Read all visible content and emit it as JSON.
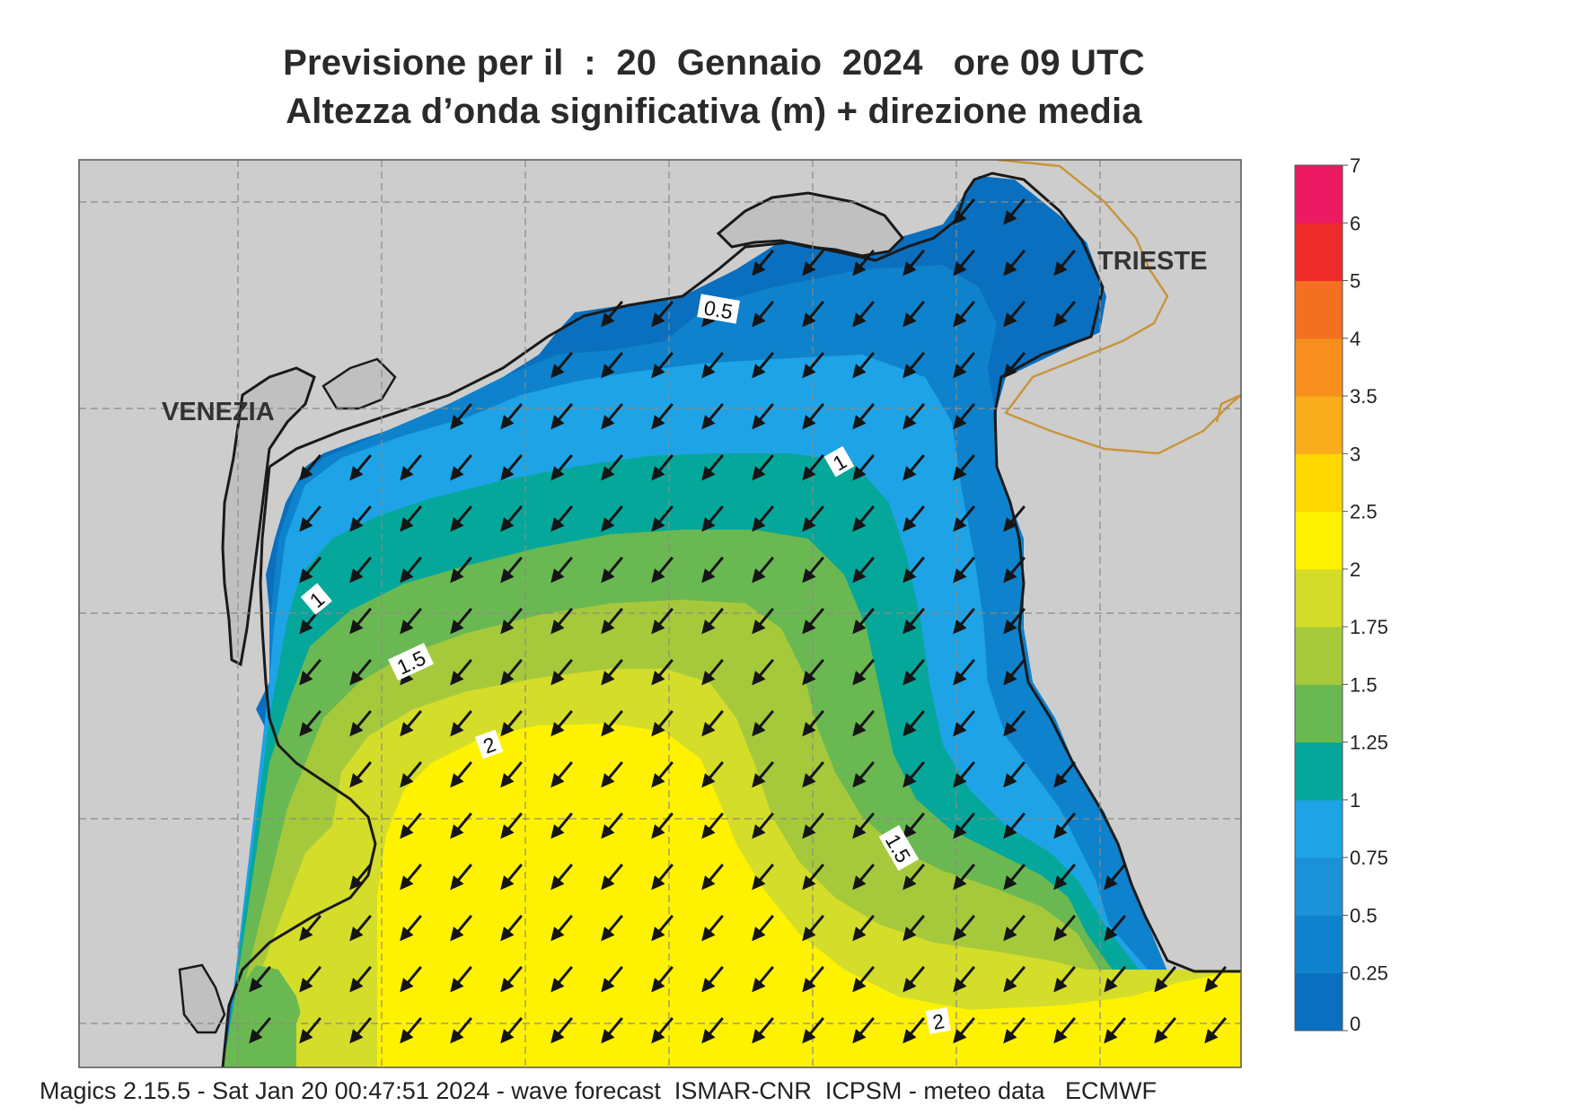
{
  "header": {
    "title_line1": "Previsione per il  :  20  Gennaio  2024   ore 09 UTC",
    "title_line2": "Altezza d’onda significativa (m) + direzione media"
  },
  "map_labels": {
    "venezia": "VENEZIA",
    "trieste": "TRIESTE"
  },
  "contour_labels": [
    "0.5",
    "1",
    "1",
    "1.5",
    "1.5",
    "2",
    "2"
  ],
  "legend": {
    "unit": "m",
    "ticks": [
      "0",
      "0.25",
      "0.5",
      "0.75",
      "1",
      "1.25",
      "1.5",
      "1.75",
      "2",
      "2.5",
      "3",
      "3.5",
      "4",
      "5",
      "6",
      "7"
    ],
    "colors": [
      "#0a6fbe",
      "#0e82cc",
      "#1b92d8",
      "#1ea3e6",
      "#05a79a",
      "#6ab851",
      "#a6c93b",
      "#d4dd2a",
      "#fff200",
      "#ffd800",
      "#f9ad1b",
      "#f78f1e",
      "#f37021",
      "#ee2a2a",
      "#ec1a62"
    ]
  },
  "wave_direction": "south-west",
  "footer": "Magics 2.15.5 - Sat Jan 20 00:47:51 2024 - wave forecast  ISMAR-CNR  ICPSM - meteo data   ECMWF"
}
